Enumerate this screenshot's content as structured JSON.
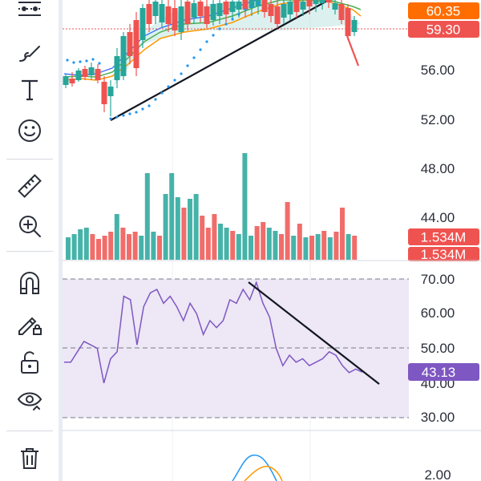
{
  "toolbar": {
    "tools": [
      {
        "icon": "indicators-icon"
      },
      {
        "icon": "brush-icon"
      },
      {
        "icon": "text-tool-icon"
      },
      {
        "icon": "emoji-icon"
      },
      {
        "icon": "ruler-icon"
      },
      {
        "icon": "zoom-in-icon"
      },
      {
        "icon": "magnet-icon"
      },
      {
        "icon": "pencil-lock-icon"
      },
      {
        "icon": "unlock-icon"
      },
      {
        "icon": "eye-icon"
      },
      {
        "icon": "trash-icon"
      }
    ]
  },
  "colors": {
    "up": "#26a69a",
    "down": "#ef5350",
    "rsi_line": "#7e57c2",
    "rsi_band": "#ede7f6",
    "current_price": "#ef5350",
    "prev_close": "#ff6d00",
    "rsi_tag": "#7e57c2"
  },
  "price_axis": {
    "ticks": [
      "56.00",
      "52.00",
      "48.00",
      "44.00"
    ],
    "last_close_label": "60.35",
    "current_price_label": "59.30"
  },
  "volume": {
    "labels": [
      "1.534M",
      "1.534M"
    ]
  },
  "rsi_axis": {
    "ticks": [
      "70.00",
      "60.00",
      "50.00",
      "40.00",
      "30.00"
    ],
    "current_label": "43.13"
  },
  "macd_axis": {
    "ticks": [
      "2.00"
    ]
  },
  "rsi_values": [
    46,
    46,
    49,
    52,
    51,
    50,
    40,
    47,
    49,
    65,
    64,
    51,
    62,
    66,
    67,
    63,
    65,
    62,
    58,
    63,
    60,
    54,
    58,
    56,
    58,
    64,
    63,
    67,
    64,
    69,
    63,
    59,
    50,
    45,
    48,
    46,
    47,
    45,
    46,
    47,
    49,
    48,
    45,
    43,
    44,
    43.13
  ]
}
